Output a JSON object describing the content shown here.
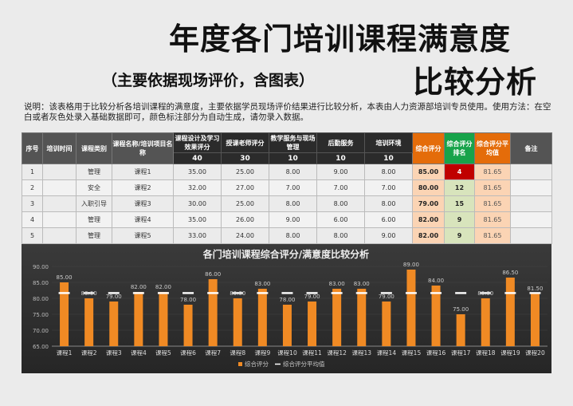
{
  "title_line1": "年度各门培训课程满意度",
  "title_line2": "比较分析",
  "subtitle": "（主要依据现场评价，含图表）",
  "description": "说明：该表格用于比较分析各培训课程的满意度，主要依据学员现场评价结果进行比较分析，本表由人力资源部培训专员使用。使用方法：在空白或者灰色处录入基础数据即可，颜色标注部分为自动生成，请勿录入数据。",
  "table": {
    "headers": [
      "序号",
      "培训时间",
      "课程类别",
      "课程名称/培训项目名称",
      "课程设计及学习效果评分",
      "授课老师评分",
      "教学服务与现场管理",
      "后勤服务",
      "培训环境",
      "综合评分",
      "综合评分排名",
      "综合评分平均值",
      "备注"
    ],
    "weights": [
      "40",
      "30",
      "10",
      "10",
      "10"
    ],
    "rows": [
      [
        "1",
        "",
        "管理",
        "课程1",
        "35.00",
        "25.00",
        "8.00",
        "9.00",
        "8.00",
        "85.00",
        "4",
        "81.65",
        ""
      ],
      [
        "2",
        "",
        "安全",
        "课程2",
        "32.00",
        "27.00",
        "7.00",
        "7.00",
        "7.00",
        "80.00",
        "12",
        "81.65",
        ""
      ],
      [
        "3",
        "",
        "入职引导",
        "课程3",
        "30.00",
        "25.00",
        "8.00",
        "8.00",
        "8.00",
        "79.00",
        "15",
        "81.65",
        ""
      ],
      [
        "4",
        "",
        "管理",
        "课程4",
        "35.00",
        "26.00",
        "9.00",
        "6.00",
        "6.00",
        "82.00",
        "9",
        "81.65",
        ""
      ],
      [
        "5",
        "",
        "管理",
        "课程5",
        "33.00",
        "24.00",
        "8.00",
        "8.00",
        "9.00",
        "82.00",
        "9",
        "81.65",
        ""
      ]
    ]
  },
  "chart_data": {
    "type": "bar",
    "title": "各门培训课程综合评分/满意度比较分析",
    "categories": [
      "课程1",
      "课程2",
      "课程3",
      "课程4",
      "课程5",
      "课程6",
      "课程7",
      "课程8",
      "课程9",
      "课程10",
      "课程11",
      "课程12",
      "课程13",
      "课程14",
      "课程15",
      "课程16",
      "课程17",
      "课程18",
      "课程19",
      "课程20"
    ],
    "series": [
      {
        "name": "综合评分",
        "values": [
          85,
          80,
          79,
          82,
          82,
          78,
          86,
          80,
          83,
          78,
          79,
          83,
          83,
          79,
          89,
          84,
          75,
          80,
          86.5,
          81.5
        ],
        "color": "#f08a24"
      },
      {
        "name": "综合评分平均值",
        "values": [
          81.65,
          81.65,
          81.65,
          81.65,
          81.65,
          81.65,
          81.65,
          81.65,
          81.65,
          81.65,
          81.65,
          81.65,
          81.65,
          81.65,
          81.65,
          81.65,
          81.65,
          81.65,
          81.65,
          81.65
        ],
        "color": "#ffffff"
      }
    ],
    "ylim": [
      65,
      90
    ],
    "yticks": [
      "65.00",
      "70.00",
      "75.00",
      "80.00",
      "85.00",
      "90.00"
    ],
    "legend": "bottom"
  }
}
